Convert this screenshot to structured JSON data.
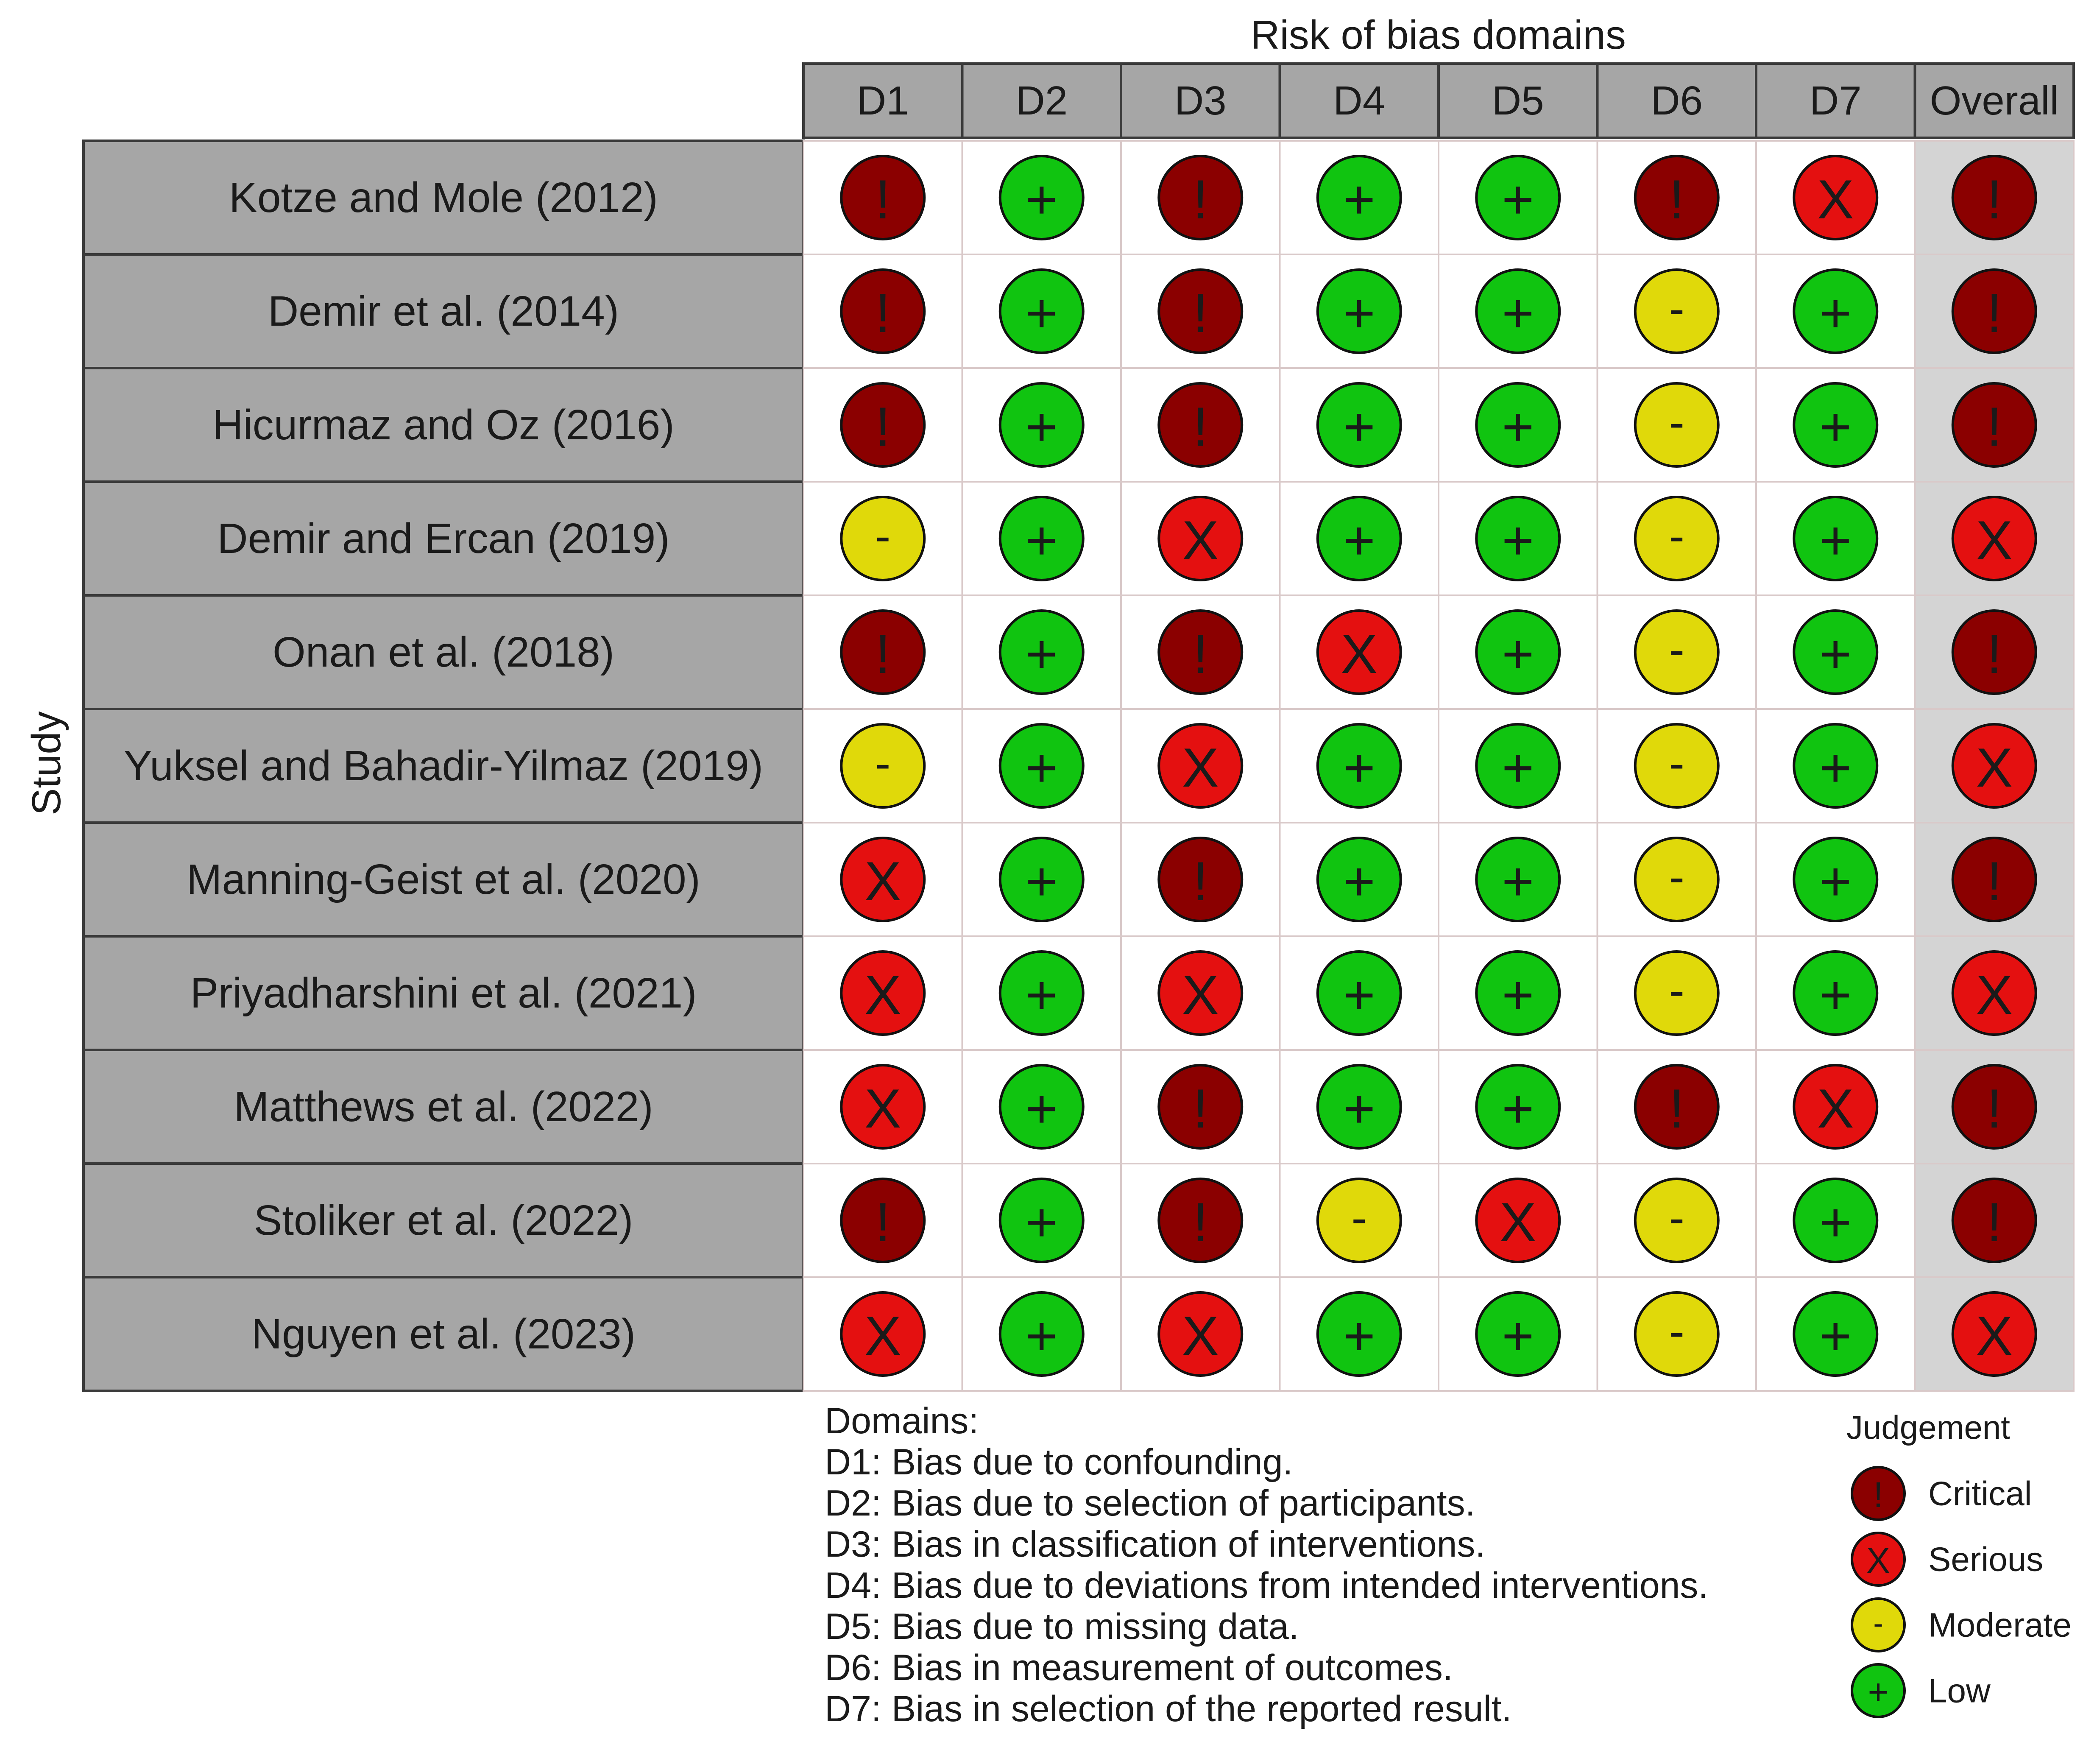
{
  "chart_data": {
    "type": "table",
    "title": "Risk of bias domains",
    "ylabel": "Study",
    "columns": [
      "D1",
      "D2",
      "D3",
      "D4",
      "D5",
      "D6",
      "D7",
      "Overall"
    ],
    "rows": [
      {
        "study": "Kotze and Mole (2012)",
        "judgements": [
          "critical",
          "low",
          "critical",
          "low",
          "low",
          "critical",
          "serious",
          "critical"
        ]
      },
      {
        "study": "Demir et al. (2014)",
        "judgements": [
          "critical",
          "low",
          "critical",
          "low",
          "low",
          "moderate",
          "low",
          "critical"
        ]
      },
      {
        "study": "Hicurmaz and Oz (2016)",
        "judgements": [
          "critical",
          "low",
          "critical",
          "low",
          "low",
          "moderate",
          "low",
          "critical"
        ]
      },
      {
        "study": "Demir and Ercan (2019)",
        "judgements": [
          "moderate",
          "low",
          "serious",
          "low",
          "low",
          "moderate",
          "low",
          "serious"
        ]
      },
      {
        "study": "Onan et al. (2018)",
        "judgements": [
          "critical",
          "low",
          "critical",
          "serious",
          "low",
          "moderate",
          "low",
          "critical"
        ]
      },
      {
        "study": "Yuksel and Bahadir-Yilmaz (2019)",
        "judgements": [
          "moderate",
          "low",
          "serious",
          "low",
          "low",
          "moderate",
          "low",
          "serious"
        ]
      },
      {
        "study": "Manning-Geist et al. (2020)",
        "judgements": [
          "serious",
          "low",
          "critical",
          "low",
          "low",
          "moderate",
          "low",
          "critical"
        ]
      },
      {
        "study": "Priyadharshini et al. (2021)",
        "judgements": [
          "serious",
          "low",
          "serious",
          "low",
          "low",
          "moderate",
          "low",
          "serious"
        ]
      },
      {
        "study": "Matthews et al. (2022)",
        "judgements": [
          "serious",
          "low",
          "critical",
          "low",
          "low",
          "critical",
          "serious",
          "critical"
        ]
      },
      {
        "study": "Stoliker et al. (2022)",
        "judgements": [
          "critical",
          "low",
          "critical",
          "moderate",
          "serious",
          "moderate",
          "low",
          "critical"
        ]
      },
      {
        "study": "Nguyen et al. (2023)",
        "judgements": [
          "serious",
          "low",
          "serious",
          "low",
          "low",
          "moderate",
          "low",
          "serious"
        ]
      }
    ],
    "domains_legend": {
      "title": "Domains:",
      "items": [
        "D1: Bias due to confounding.",
        "D2: Bias due to selection of participants.",
        "D3: Bias in classification of interventions.",
        "D4: Bias due to deviations from intended interventions.",
        "D5: Bias due to missing data.",
        "D6: Bias in measurement of outcomes.",
        "D7: Bias in selection of the reported result."
      ]
    },
    "judgement_legend": {
      "title": "Judgement",
      "items": [
        {
          "key": "critical",
          "label": "Critical",
          "symbol": "!",
          "color": "#8b0000"
        },
        {
          "key": "serious",
          "label": "Serious",
          "symbol": "X",
          "color": "#e41010"
        },
        {
          "key": "moderate",
          "label": "Moderate",
          "symbol": "-",
          "color": "#e0d90a"
        },
        {
          "key": "low",
          "label": "Low",
          "symbol": "+",
          "color": "#10c410"
        }
      ]
    }
  }
}
